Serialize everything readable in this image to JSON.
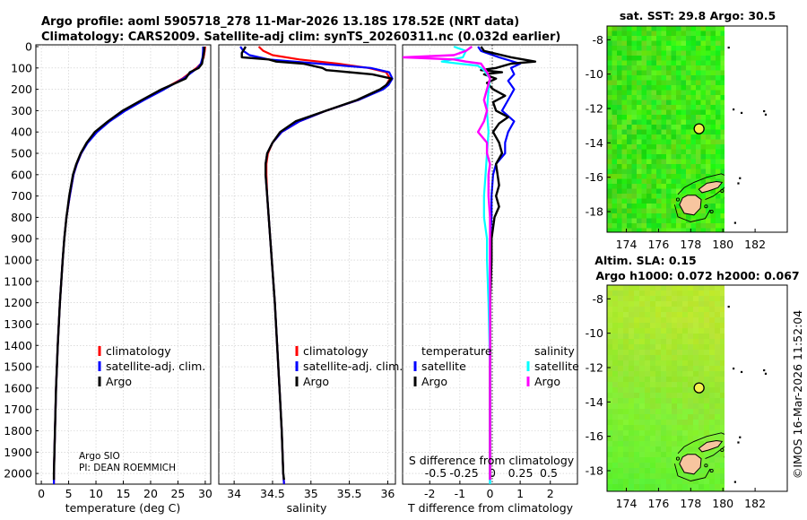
{
  "header": {
    "title_line1": "Argo profile: aoml 5905718_278 11-Mar-2026 13.18S 178.52E (NRT data)",
    "title_line2": "Climatology: CARS2009. Satellite-adj clim: synTS_20260311.nc (0.032d earlier)"
  },
  "colors": {
    "climatology": "#ff0000",
    "satellite": "#0000ff",
    "argo": "#000000",
    "sal_satellite": "#00ffff",
    "sal_argo": "#ff00ff",
    "island": "#f7c59f"
  },
  "chart_data": [
    {
      "id": "temperature",
      "type": "line",
      "xlabel": "temperature (deg C)",
      "xlim": [
        -1,
        31
      ],
      "xticks": [
        "0",
        "5",
        "10",
        "15",
        "20",
        "25",
        "30"
      ],
      "yaxis": {
        "ylim": [
          0,
          2050
        ],
        "reversed": true,
        "yticks": [
          "0",
          "100",
          "200",
          "300",
          "400",
          "500",
          "600",
          "700",
          "800",
          "900",
          "1000",
          "1100",
          "1200",
          "1300",
          "1400",
          "1500",
          "1600",
          "1700",
          "1800",
          "1900",
          "2000"
        ]
      },
      "legend": [
        "climatology",
        "satellite-adj. clim.",
        "Argo"
      ],
      "annotations": [
        "Argo SIO",
        "PI: DEAN ROEMMICH"
      ],
      "series": [
        {
          "name": "climatology",
          "depth": [
            0,
            20,
            50,
            80,
            100,
            150,
            200,
            250,
            300,
            350,
            400,
            450,
            500,
            550,
            600,
            700,
            800,
            900,
            1000,
            1200,
            1400,
            1600,
            1800,
            2000,
            2050
          ],
          "values": [
            30.0,
            29.9,
            29.7,
            29.2,
            28.4,
            25.8,
            22.3,
            18.6,
            15.3,
            12.4,
            10.1,
            8.4,
            7.3,
            6.5,
            5.9,
            5.2,
            4.6,
            4.2,
            3.9,
            3.4,
            3.0,
            2.7,
            2.5,
            2.3,
            2.3
          ]
        },
        {
          "name": "satellite-adj. clim.",
          "depth": [
            0,
            20,
            50,
            80,
            100,
            150,
            200,
            250,
            300,
            350,
            400,
            450,
            500,
            550,
            600,
            700,
            800,
            900,
            1000,
            1200,
            1400,
            1600,
            1800,
            2000,
            2050
          ],
          "values": [
            29.6,
            29.6,
            29.5,
            29.2,
            28.6,
            26.0,
            22.5,
            18.8,
            15.4,
            12.5,
            10.2,
            8.5,
            7.3,
            6.5,
            5.9,
            5.2,
            4.6,
            4.2,
            3.9,
            3.4,
            3.0,
            2.7,
            2.5,
            2.3,
            2.3
          ]
        },
        {
          "name": "Argo",
          "depth": [
            0,
            20,
            50,
            80,
            100,
            120,
            150,
            200,
            250,
            300,
            350,
            400,
            450,
            500,
            550,
            600,
            700,
            800,
            900,
            1000,
            1200,
            1400,
            1600,
            1800,
            2000,
            2030
          ],
          "values": [
            29.8,
            29.8,
            29.6,
            29.4,
            28.8,
            27.2,
            26.4,
            22.0,
            18.4,
            14.9,
            12.2,
            9.8,
            8.3,
            7.2,
            6.4,
            5.8,
            5.1,
            4.6,
            4.2,
            3.9,
            3.4,
            3.0,
            2.7,
            2.5,
            2.3,
            2.3
          ]
        }
      ]
    },
    {
      "id": "salinity",
      "type": "line",
      "xlabel": "salinity",
      "xlim": [
        33.8,
        36.1
      ],
      "xticks": [
        "34",
        "34.5",
        "35",
        "35.5",
        "36"
      ],
      "legend": [
        "climatology",
        "satellite-adj. clim.",
        "Argo"
      ],
      "series": [
        {
          "name": "climatology",
          "depth": [
            0,
            20,
            40,
            60,
            80,
            100,
            120,
            150,
            180,
            200,
            250,
            300,
            350,
            400,
            450,
            500,
            550,
            600,
            700,
            800,
            900,
            1000,
            1200,
            1400,
            1600,
            1800,
            2000,
            2050
          ],
          "values": [
            34.32,
            34.38,
            34.5,
            34.85,
            35.35,
            35.75,
            35.98,
            36.03,
            35.98,
            35.92,
            35.62,
            35.2,
            34.85,
            34.62,
            34.5,
            34.44,
            34.42,
            34.42,
            34.43,
            34.45,
            34.47,
            34.49,
            34.53,
            34.56,
            34.59,
            34.62,
            34.64,
            34.65
          ]
        },
        {
          "name": "satellite-adj. clim.",
          "depth": [
            0,
            20,
            40,
            60,
            80,
            100,
            120,
            150,
            180,
            200,
            250,
            300,
            350,
            400,
            450,
            500,
            550,
            600,
            700,
            800,
            900,
            1000,
            1200,
            1400,
            1600,
            1800,
            2000,
            2050
          ],
          "values": [
            34.08,
            34.12,
            34.2,
            34.45,
            35.1,
            35.78,
            36.02,
            36.06,
            36.01,
            35.94,
            35.62,
            35.2,
            34.85,
            34.62,
            34.5,
            34.43,
            34.41,
            34.41,
            34.43,
            34.45,
            34.47,
            34.49,
            34.53,
            34.56,
            34.59,
            34.62,
            34.64,
            34.65
          ]
        },
        {
          "name": "Argo",
          "depth": [
            0,
            30,
            50,
            60,
            70,
            80,
            100,
            110,
            130,
            150,
            180,
            200,
            250,
            300,
            350,
            400,
            450,
            500,
            550,
            600,
            700,
            800,
            900,
            1000,
            1200,
            1400,
            1600,
            1800,
            2000,
            2030
          ],
          "values": [
            34.15,
            34.1,
            34.1,
            34.45,
            34.55,
            34.9,
            35.15,
            35.2,
            35.8,
            36.05,
            35.98,
            35.9,
            35.6,
            35.2,
            34.8,
            34.6,
            34.5,
            34.43,
            34.41,
            34.41,
            34.43,
            34.45,
            34.47,
            34.49,
            34.53,
            34.56,
            34.59,
            34.62,
            34.64,
            34.65
          ]
        }
      ]
    },
    {
      "id": "difference",
      "type": "line",
      "xlabel": "T difference from climatology",
      "xlabel_top": "S difference from climatology",
      "xlim": [
        -2.9,
        2.9
      ],
      "xticks": [
        "-2",
        "-1",
        "0",
        "1",
        "2"
      ],
      "xticks_top": [
        "-0.5",
        "-0.25",
        "0",
        "0.25",
        "0.5"
      ],
      "legend_left_title": "temperature",
      "legend_right_title": "salinity",
      "legend_left": [
        "satellite",
        "Argo"
      ],
      "legend_right": [
        "satellite",
        "Argo"
      ],
      "series": [
        {
          "name": "T satellite",
          "depth": [
            0,
            20,
            50,
            80,
            100,
            130,
            160,
            200,
            250,
            300,
            350,
            400,
            450,
            500,
            550,
            600,
            700,
            800,
            900,
            1000,
            1200,
            1500,
            1800,
            2000,
            2050
          ],
          "values": [
            -0.4,
            -0.3,
            0.3,
            1.0,
            0.7,
            0.8,
            0.6,
            0.8,
            0.6,
            0.4,
            0.8,
            0.6,
            0.5,
            0.5,
            0.2,
            0.1,
            0.05,
            0.05,
            0.0,
            0.0,
            0.0,
            0.0,
            0.0,
            0.0,
            0.0
          ]
        },
        {
          "name": "T Argo",
          "depth": [
            0,
            20,
            50,
            70,
            80,
            100,
            110,
            120,
            130,
            150,
            170,
            200,
            230,
            260,
            300,
            330,
            360,
            400,
            450,
            500,
            550,
            600,
            650,
            700,
            750,
            800,
            900,
            1000,
            1200,
            1500,
            1800,
            2000,
            2030
          ],
          "values": [
            -0.3,
            -0.2,
            0.7,
            1.5,
            0.7,
            0.2,
            -0.3,
            0.4,
            -0.2,
            0.2,
            -0.1,
            0.1,
            0.5,
            0.1,
            0.2,
            0.6,
            0.3,
            0.1,
            0.3,
            0.4,
            0.2,
            0.25,
            0.3,
            0.2,
            0.3,
            0.15,
            0.05,
            0.05,
            0.0,
            0.0,
            0.0,
            0.0,
            0.0
          ]
        },
        {
          "name": "S satellite",
          "depth": [
            0,
            20,
            50,
            70,
            90,
            110,
            150,
            200,
            300,
            400,
            500,
            600,
            700,
            800,
            900,
            1000,
            1200,
            1500,
            1800,
            2000,
            2050
          ],
          "values": [
            -1.2,
            -0.8,
            -0.9,
            -1.6,
            -0.4,
            -0.2,
            0.0,
            -0.05,
            -0.1,
            -0.05,
            -0.1,
            -0.15,
            -0.2,
            -0.2,
            -0.1,
            -0.1,
            -0.05,
            0.0,
            0.0,
            0.0,
            0.0
          ]
        },
        {
          "name": "S Argo",
          "depth": [
            0,
            20,
            40,
            50,
            60,
            70,
            80,
            100,
            120,
            150,
            200,
            250,
            300,
            350,
            400,
            450,
            500,
            550,
            600,
            700,
            800,
            1000,
            1200,
            1500,
            1800,
            2000,
            2030
          ],
          "values": [
            -0.6,
            -0.8,
            -1.2,
            -2.9,
            -1.2,
            -0.8,
            -0.3,
            -0.2,
            -0.1,
            0.0,
            -0.1,
            -0.2,
            -0.1,
            -0.2,
            -0.4,
            -0.1,
            -0.1,
            0.0,
            -0.05,
            -0.05,
            0.0,
            0.0,
            0.0,
            0.0,
            0.0,
            0.0,
            0.0
          ]
        }
      ]
    },
    {
      "id": "sst_map",
      "type": "heatmap",
      "title": "sat. SST: 29.8 Argo: 30.5",
      "xticks": [
        "174",
        "176",
        "178",
        "180",
        "182"
      ],
      "yticks": [
        "-8",
        "-10",
        "-12",
        "-14",
        "-16",
        "-18"
      ],
      "float_position": {
        "lon": 178.52,
        "lat": -13.18
      }
    },
    {
      "id": "sla_map",
      "type": "heatmap",
      "title": "Altim. SLA: 0.15",
      "subtitle": "Argo h1000: 0.072 h2000: 0.067",
      "xticks": [
        "174",
        "176",
        "178",
        "180",
        "182"
      ],
      "yticks": [
        "-8",
        "-10",
        "-12",
        "-14",
        "-16",
        "-18"
      ],
      "float_position": {
        "lon": 178.52,
        "lat": -13.18
      }
    }
  ],
  "credit": "©IMOS 16-Mar-2026 11:52:04"
}
